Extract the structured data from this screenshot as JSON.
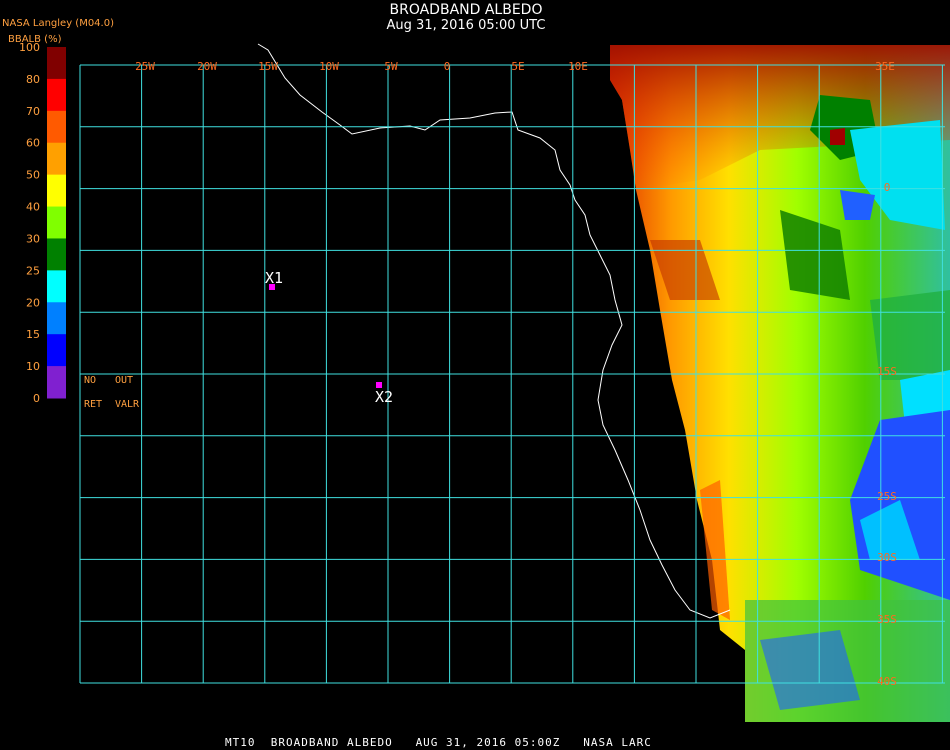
{
  "header": {
    "source": "NASA Langley (M04.0)",
    "title": "BROADBAND ALBEDO",
    "subtitle": "Aug 31, 2016 05:00 UTC",
    "unit_label": "BBALB (%)"
  },
  "colorbar": {
    "ticks": [
      100,
      80,
      70,
      60,
      50,
      40,
      30,
      25,
      20,
      15,
      10,
      0
    ],
    "colors": [
      "#800000",
      "#ff0000",
      "#ff5a00",
      "#ffa000",
      "#ffff00",
      "#80ff00",
      "#008000",
      "#00ffff",
      "#0080ff",
      "#0000ff",
      "#8020d0"
    ]
  },
  "legend_notes": [
    "NO",
    "OUT",
    "RET",
    "VALR"
  ],
  "longitude_labels": [
    "25W",
    "20W",
    "15W",
    "10W",
    "5W",
    "0",
    "5E",
    "10E",
    "35E"
  ],
  "latitude_labels": [
    "0",
    "15S",
    "25S",
    "30S",
    "35S",
    "40S"
  ],
  "markers": [
    {
      "label": "X1"
    },
    {
      "label": "X2"
    }
  ],
  "footer": "MT10  BROADBAND ALBEDO   AUG 31, 2016 05:00Z   NASA LARC"
}
